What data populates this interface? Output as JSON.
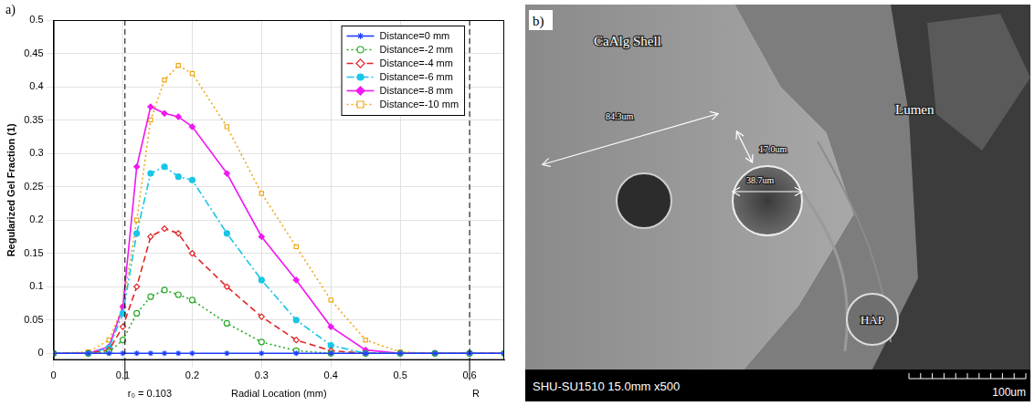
{
  "chart_data": {
    "type": "line",
    "panel_label": "a)",
    "x_label": "Radial Location (mm)",
    "y_label": "Regularized Gel Fraction (1)",
    "x": [
      0,
      0.05,
      0.08,
      0.1,
      0.12,
      0.14,
      0.16,
      0.18,
      0.2,
      0.25,
      0.3,
      0.35,
      0.4,
      0.45,
      0.5,
      0.55,
      0.6,
      0.65
    ],
    "series": [
      {
        "name": "Distance=0 mm",
        "color": "#1f3fff",
        "marker": "asterisk",
        "line_style": "solid",
        "values": [
          0,
          0,
          0,
          0,
          0,
          0,
          0,
          0,
          0,
          0,
          0,
          0,
          0,
          0,
          0,
          0,
          0,
          0
        ]
      },
      {
        "name": "Distance=-2 mm",
        "color": "#2aa82a",
        "marker": "open circle",
        "line_style": "dotted",
        "values": [
          0,
          0,
          0.002,
          0.02,
          0.06,
          0.085,
          0.095,
          0.088,
          0.08,
          0.045,
          0.017,
          0.004,
          0,
          0,
          0,
          0,
          0,
          0
        ]
      },
      {
        "name": "Distance=-4 mm",
        "color": "#e02424",
        "marker": "open diamond",
        "line_style": "dashed",
        "values": [
          0,
          0,
          0.005,
          0.04,
          0.1,
          0.175,
          0.187,
          0.18,
          0.15,
          0.1,
          0.055,
          0.02,
          0.004,
          0,
          0,
          0,
          0,
          0
        ]
      },
      {
        "name": "Distance=-6 mm",
        "color": "#19c6e6",
        "marker": "filled circle",
        "line_style": "dashdot",
        "values": [
          0,
          0,
          0.008,
          0.06,
          0.18,
          0.27,
          0.28,
          0.265,
          0.26,
          0.18,
          0.11,
          0.05,
          0.012,
          0,
          0,
          0,
          0,
          0
        ]
      },
      {
        "name": "Distance=-8 mm",
        "color": "#f018f0",
        "marker": "filled diamond",
        "line_style": "solid",
        "values": [
          0,
          0,
          0.01,
          0.07,
          0.28,
          0.37,
          0.36,
          0.355,
          0.34,
          0.27,
          0.175,
          0.11,
          0.04,
          0.005,
          0,
          0,
          0,
          0
        ]
      },
      {
        "name": "Distance=-10 mm",
        "color": "#f0a818",
        "marker": "open square",
        "line_style": "dotted",
        "values": [
          0,
          0.002,
          0.02,
          0.07,
          0.2,
          0.35,
          0.41,
          0.432,
          0.42,
          0.34,
          0.24,
          0.16,
          0.08,
          0.02,
          0.002,
          0,
          0,
          0
        ]
      }
    ],
    "xlim": [
      0,
      0.65
    ],
    "xticks": [
      0,
      0.1,
      0.2,
      0.3,
      0.4,
      0.5,
      0.6
    ],
    "ylim": [
      -0.01,
      0.5
    ],
    "yticks": [
      0,
      0.05,
      0.1,
      0.15,
      0.2,
      0.25,
      0.3,
      0.35,
      0.4,
      0.45,
      0.5
    ],
    "grid": true,
    "legend": "upper right",
    "annotations": [
      {
        "text": "r₀ = 0.103",
        "x": 0.103
      },
      {
        "text": "R",
        "x": 0.6
      }
    ]
  },
  "image_panel": {
    "panel_label": "b)",
    "labels": {
      "shell": "CaAlg Shell",
      "lumen": "Lumen",
      "particle": "HAP"
    },
    "measurements": [
      "84.3um",
      "17.0um",
      "38.7um"
    ],
    "info": "SHU-SU1510 15.0mm x500",
    "scale_bar": "100um"
  }
}
